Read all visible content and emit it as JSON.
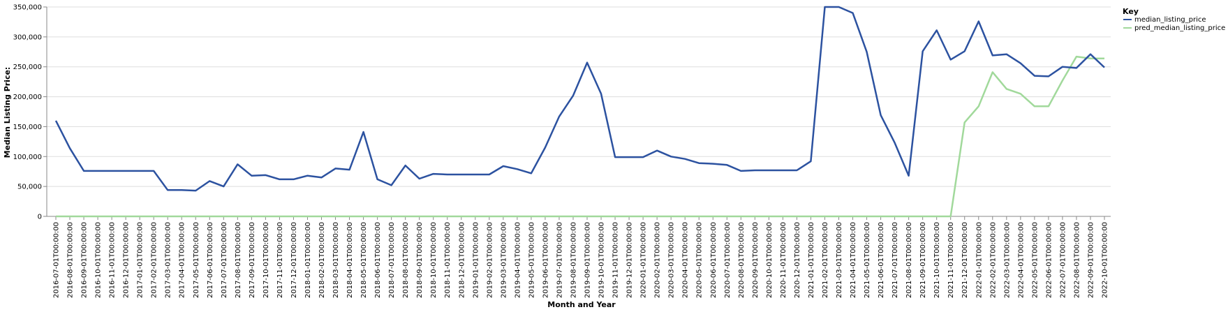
{
  "chart_data": {
    "type": "line",
    "xlabel": "Month and Year",
    "ylabel": "Median Listing Price:",
    "ylim": [
      0,
      350000
    ],
    "yticks": [
      "0",
      "50,000",
      "100,000",
      "150,000",
      "200,000",
      "250,000",
      "300,000",
      "350,000"
    ],
    "grid": true,
    "legend": {
      "title": "Key",
      "placement": "top-right"
    },
    "categories": [
      "2016-07-01T00:00:00",
      "2016-08-01T00:00:00",
      "2016-09-01T00:00:00",
      "2016-10-01T00:00:00",
      "2016-11-01T00:00:00",
      "2016-12-01T00:00:00",
      "2017-01-01T00:00:00",
      "2017-02-01T00:00:00",
      "2017-03-01T00:00:00",
      "2017-04-01T00:00:00",
      "2017-05-01T00:00:00",
      "2017-06-01T00:00:00",
      "2017-07-01T00:00:00",
      "2017-08-01T00:00:00",
      "2017-09-01T00:00:00",
      "2017-10-01T00:00:00",
      "2017-11-01T00:00:00",
      "2017-12-01T00:00:00",
      "2018-01-01T00:00:00",
      "2018-02-01T00:00:00",
      "2018-03-01T00:00:00",
      "2018-04-01T00:00:00",
      "2018-05-01T00:00:00",
      "2018-06-01T00:00:00",
      "2018-07-01T00:00:00",
      "2018-08-01T00:00:00",
      "2018-09-01T00:00:00",
      "2018-10-01T00:00:00",
      "2018-11-01T00:00:00",
      "2018-12-01T00:00:00",
      "2019-01-01T00:00:00",
      "2019-02-01T00:00:00",
      "2019-03-01T00:00:00",
      "2019-04-01T00:00:00",
      "2019-05-01T00:00:00",
      "2019-06-01T00:00:00",
      "2019-07-01T00:00:00",
      "2019-08-01T00:00:00",
      "2019-09-01T00:00:00",
      "2019-10-01T00:00:00",
      "2019-11-01T00:00:00",
      "2019-12-01T00:00:00",
      "2020-01-01T00:00:00",
      "2020-02-01T00:00:00",
      "2020-03-01T00:00:00",
      "2020-04-01T00:00:00",
      "2020-05-01T00:00:00",
      "2020-06-01T00:00:00",
      "2020-07-01T00:00:00",
      "2020-08-01T00:00:00",
      "2020-09-01T00:00:00",
      "2020-10-01T00:00:00",
      "2020-11-01T00:00:00",
      "2020-12-01T00:00:00",
      "2021-01-01T00:00:00",
      "2021-02-01T00:00:00",
      "2021-03-01T00:00:00",
      "2021-04-01T00:00:00",
      "2021-05-01T00:00:00",
      "2021-06-01T00:00:00",
      "2021-07-01T00:00:00",
      "2021-08-01T00:00:00",
      "2021-09-01T00:00:00",
      "2021-10-01T00:00:00",
      "2021-11-01T00:00:00",
      "2021-12-01T00:00:00",
      "2022-01-01T00:00:00",
      "2022-02-01T00:00:00",
      "2022-03-01T00:00:00",
      "2022-04-01T00:00:00",
      "2022-05-01T00:00:00",
      "2022-06-01T00:00:00",
      "2022-07-01T00:00:00",
      "2022-08-01T00:00:00",
      "2022-09-01T00:00:00",
      "2022-10-01T00:00:00"
    ],
    "series": [
      {
        "name": "median_listing_price",
        "color": "#2c52a0",
        "values": [
          160000,
          114000,
          76000,
          76000,
          76000,
          76000,
          76000,
          76000,
          44000,
          44000,
          43000,
          59000,
          50000,
          87000,
          68000,
          69000,
          62000,
          62000,
          68000,
          65000,
          80000,
          78000,
          141000,
          62000,
          52000,
          85000,
          63000,
          71000,
          70000,
          70000,
          70000,
          70000,
          84000,
          79000,
          72000,
          115000,
          167000,
          202000,
          257000,
          205000,
          99000,
          99000,
          99000,
          110000,
          100000,
          96000,
          89000,
          88000,
          86000,
          76000,
          77000,
          77000,
          77000,
          77000,
          92000,
          350000,
          350000,
          340000,
          275000,
          169000,
          123000,
          68000,
          276000,
          311000,
          262000,
          276000,
          326000,
          269000,
          271000,
          256000,
          235000,
          234000,
          250000,
          248000,
          271000,
          249000
        ]
      },
      {
        "name": "pred_median_listing_price",
        "color": "#a1d99b",
        "values": [
          0,
          0,
          0,
          0,
          0,
          0,
          0,
          0,
          0,
          0,
          0,
          0,
          0,
          0,
          0,
          0,
          0,
          0,
          0,
          0,
          0,
          0,
          0,
          0,
          0,
          0,
          0,
          0,
          0,
          0,
          0,
          0,
          0,
          0,
          0,
          0,
          0,
          0,
          0,
          0,
          0,
          0,
          0,
          0,
          0,
          0,
          0,
          0,
          0,
          0,
          0,
          0,
          0,
          0,
          0,
          0,
          0,
          0,
          0,
          0,
          0,
          0,
          0,
          0,
          0,
          157000,
          184000,
          241000,
          213000,
          205000,
          184000,
          184000,
          227000,
          267000,
          264000,
          264000
        ]
      }
    ]
  }
}
